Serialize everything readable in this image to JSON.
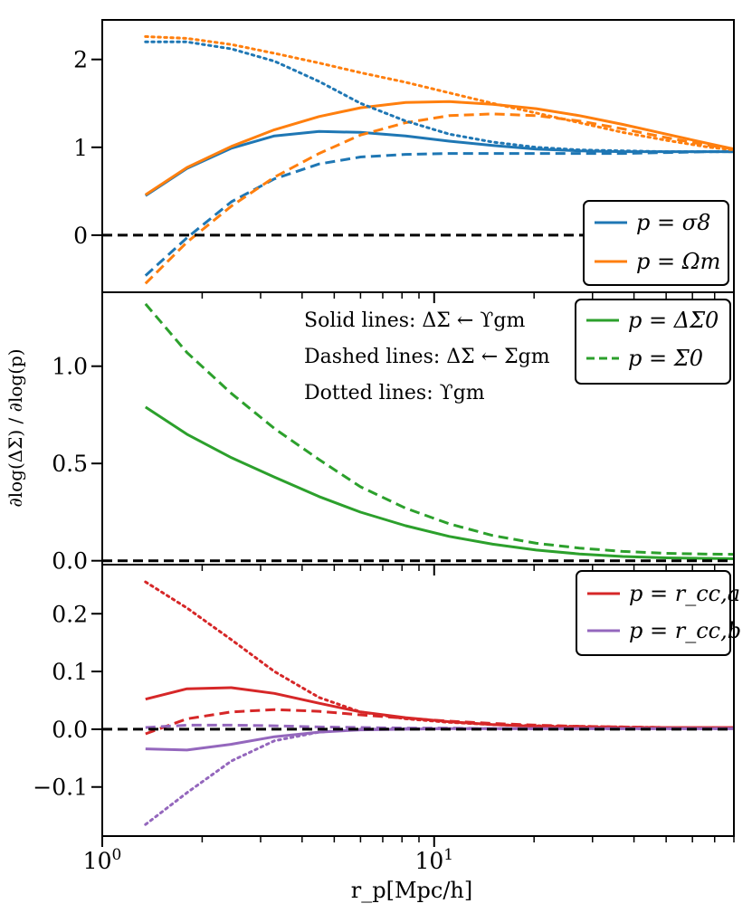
{
  "chart_data": {
    "type": "line",
    "xlabel": "r_p[Mpc/h]",
    "ylabel": "∂log(ΔΣ) / ∂log(p)",
    "xscale": "log",
    "xlim": [
      1,
      80
    ],
    "x_tick_labels": [
      "10^0",
      "10^1"
    ],
    "line_styles": {
      "solid": "ΔΣ ← ϒ_gm",
      "dashed": "ΔΣ ← Σ_gm",
      "dotted": "ϒ_gm"
    },
    "colors": {
      "sigma8": "#1f77b4",
      "omegam": "#ff7f0e",
      "green": "#2ca02c",
      "red": "#d62728",
      "purple": "#9467bd",
      "zero_line": "#000000"
    },
    "panels": [
      {
        "name": "top",
        "ylim": [
          -0.65,
          2.45
        ],
        "yticks": [
          0,
          1,
          2
        ],
        "ytick_labels": [
          "0",
          "1",
          "2"
        ],
        "legend": [
          "p = σ8",
          "p = Ωm"
        ],
        "series": [
          {
            "name": "σ8 solid",
            "color": "sigma8",
            "style": "solid",
            "x": [
              1.35,
              1.8,
              2.45,
              3.3,
              4.5,
              6.0,
              8.2,
              11.1,
              15.0,
              20.3,
              27.4,
              37.0,
              50.0,
              67.5,
              80.0
            ],
            "y": [
              0.45,
              0.76,
              0.99,
              1.13,
              1.18,
              1.17,
              1.13,
              1.07,
              1.02,
              0.98,
              0.96,
              0.95,
              0.95,
              0.95,
              0.95
            ]
          },
          {
            "name": "Ωm solid",
            "color": "omegam",
            "style": "solid",
            "x": [
              1.35,
              1.8,
              2.45,
              3.3,
              4.5,
              6.0,
              8.2,
              11.1,
              15.0,
              20.3,
              27.4,
              37.0,
              50.0,
              67.5,
              80.0
            ],
            "y": [
              0.46,
              0.77,
              1.01,
              1.2,
              1.35,
              1.45,
              1.51,
              1.52,
              1.49,
              1.44,
              1.36,
              1.26,
              1.15,
              1.04,
              0.98
            ]
          },
          {
            "name": "σ8 dashed",
            "color": "sigma8",
            "style": "dashed",
            "x": [
              1.35,
              1.8,
              2.45,
              3.3,
              4.5,
              6.0,
              8.2,
              11.1,
              15.0,
              20.3,
              27.4,
              37.0,
              50.0,
              67.5,
              80.0
            ],
            "y": [
              -0.46,
              -0.03,
              0.38,
              0.64,
              0.81,
              0.89,
              0.92,
              0.93,
              0.93,
              0.93,
              0.93,
              0.93,
              0.94,
              0.95,
              0.95
            ]
          },
          {
            "name": "Ωm dashed",
            "color": "omegam",
            "style": "dashed",
            "x": [
              1.35,
              1.8,
              2.45,
              3.3,
              4.5,
              6.0,
              8.2,
              11.1,
              15.0,
              20.3,
              27.4,
              37.0,
              50.0,
              67.5,
              80.0
            ],
            "y": [
              -0.55,
              -0.08,
              0.33,
              0.66,
              0.93,
              1.14,
              1.28,
              1.36,
              1.38,
              1.36,
              1.3,
              1.21,
              1.11,
              1.02,
              0.98
            ]
          },
          {
            "name": "σ8 dotted",
            "color": "sigma8",
            "style": "dotted",
            "x": [
              1.35,
              1.8,
              2.45,
              3.3,
              4.5,
              6.0,
              8.2,
              11.1,
              15.0,
              20.3,
              27.4,
              37.0,
              50.0,
              67.5,
              80.0
            ],
            "y": [
              2.2,
              2.2,
              2.12,
              1.98,
              1.75,
              1.5,
              1.3,
              1.15,
              1.06,
              1.0,
              0.97,
              0.96,
              0.95,
              0.95,
              0.95
            ]
          },
          {
            "name": "Ωm dotted",
            "color": "omegam",
            "style": "dotted",
            "x": [
              1.35,
              1.8,
              2.45,
              3.3,
              4.5,
              6.0,
              8.2,
              11.1,
              15.0,
              20.3,
              27.4,
              37.0,
              50.0,
              67.5,
              80.0
            ],
            "y": [
              2.26,
              2.24,
              2.17,
              2.07,
              1.96,
              1.85,
              1.74,
              1.62,
              1.5,
              1.39,
              1.28,
              1.17,
              1.08,
              1.0,
              0.97
            ]
          }
        ]
      },
      {
        "name": "middle",
        "ylim": [
          -0.02,
          1.38
        ],
        "yticks": [
          0,
          0.5,
          1
        ],
        "ytick_labels": [
          "0.0",
          "0.5",
          "1.0"
        ],
        "legend": [
          "p = ΔΣ0",
          "p = Σ0"
        ],
        "annotations": [
          "Solid lines: ΔΣ ← ϒgm",
          "Dashed lines: ΔΣ ← Σgm",
          "Dotted lines: ϒgm"
        ],
        "series": [
          {
            "name": "ΔΣ0 solid",
            "color": "green",
            "style": "solid",
            "x": [
              1.35,
              1.8,
              2.45,
              3.3,
              4.5,
              6.0,
              8.2,
              11.1,
              15.0,
              20.3,
              27.4,
              37.0,
              50.0,
              67.5,
              80.0
            ],
            "y": [
              0.79,
              0.65,
              0.53,
              0.43,
              0.33,
              0.25,
              0.18,
              0.125,
              0.085,
              0.055,
              0.035,
              0.022,
              0.015,
              0.012,
              0.01
            ]
          },
          {
            "name": "Σ0 dashed",
            "color": "green",
            "style": "dashed",
            "x": [
              1.35,
              1.8,
              2.45,
              3.3,
              4.5,
              6.0,
              8.2,
              11.1,
              15.0,
              20.3,
              27.4,
              37.0,
              50.0,
              67.5,
              80.0
            ],
            "y": [
              1.32,
              1.07,
              0.86,
              0.68,
              0.52,
              0.38,
              0.27,
              0.19,
              0.13,
              0.09,
              0.065,
              0.048,
              0.038,
              0.034,
              0.033
            ]
          }
        ]
      },
      {
        "name": "bottom",
        "ylim": [
          -0.185,
          0.285
        ],
        "yticks": [
          -0.1,
          0,
          0.1,
          0.2
        ],
        "ytick_labels": [
          "−0.1",
          "0.0",
          "0.1",
          "0.2"
        ],
        "legend": [
          "p = r_cc,a",
          "p = r_cc,b"
        ],
        "series": [
          {
            "name": "rcc,a solid",
            "color": "red",
            "style": "solid",
            "x": [
              1.35,
              1.8,
              2.45,
              3.3,
              4.5,
              6.0,
              8.2,
              11.1,
              15.0,
              20.3,
              27.4,
              37.0,
              50.0,
              67.5,
              80.0
            ],
            "y": [
              0.052,
              0.07,
              0.072,
              0.062,
              0.045,
              0.03,
              0.02,
              0.013,
              0.008,
              0.005,
              0.004,
              0.003,
              0.003,
              0.003,
              0.003
            ]
          },
          {
            "name": "rcc,a dashed",
            "color": "red",
            "style": "dashed",
            "x": [
              1.35,
              1.8,
              2.45,
              3.3,
              4.5,
              6.0,
              8.2,
              11.1,
              15.0,
              20.3,
              27.4,
              37.0,
              50.0,
              67.5,
              80.0
            ],
            "y": [
              -0.008,
              0.018,
              0.03,
              0.034,
              0.031,
              0.025,
              0.019,
              0.014,
              0.01,
              0.007,
              0.005,
              0.004,
              0.003,
              0.003,
              0.003
            ]
          },
          {
            "name": "rcc,a dotted",
            "color": "red",
            "style": "dotted",
            "x": [
              1.35,
              1.8,
              2.45,
              3.3,
              4.5,
              6.0,
              8.2,
              11.1,
              15.0,
              20.3,
              27.4,
              37.0,
              50.0,
              67.5,
              80.0
            ],
            "y": [
              0.255,
              0.21,
              0.155,
              0.1,
              0.055,
              0.03,
              0.018,
              0.012,
              0.008,
              0.006,
              0.005,
              0.004,
              0.003,
              0.003,
              0.003
            ]
          },
          {
            "name": "rcc,b solid",
            "color": "purple",
            "style": "solid",
            "x": [
              1.35,
              1.8,
              2.45,
              3.3,
              4.5,
              6.0,
              8.2,
              11.1,
              15.0,
              20.3,
              27.4,
              37.0,
              50.0,
              67.5,
              80.0
            ],
            "y": [
              -0.034,
              -0.036,
              -0.026,
              -0.013,
              -0.005,
              -0.001,
              0.0,
              0.001,
              0.001,
              0.001,
              0.001,
              0.001,
              0.001,
              0.001,
              0.001
            ]
          },
          {
            "name": "rcc,b dashed",
            "color": "purple",
            "style": "dashed",
            "x": [
              1.35,
              1.8,
              2.45,
              3.3,
              4.5,
              6.0,
              8.2,
              11.1,
              15.0,
              20.3,
              27.4,
              37.0,
              50.0,
              67.5,
              80.0
            ],
            "y": [
              0.003,
              0.007,
              0.007,
              0.006,
              0.004,
              0.003,
              0.002,
              0.002,
              0.001,
              0.001,
              0.001,
              0.001,
              0.001,
              0.001,
              0.001
            ]
          },
          {
            "name": "rcc,b dotted",
            "color": "purple",
            "style": "dotted",
            "x": [
              1.35,
              1.8,
              2.45,
              3.3,
              4.5,
              6.0,
              8.2,
              11.1,
              15.0,
              20.3,
              27.4,
              37.0,
              50.0,
              67.5,
              80.0
            ],
            "y": [
              -0.165,
              -0.11,
              -0.055,
              -0.02,
              -0.005,
              0.0,
              0.001,
              0.001,
              0.001,
              0.001,
              0.001,
              0.001,
              0.001,
              0.001,
              0.001
            ]
          }
        ]
      }
    ]
  }
}
